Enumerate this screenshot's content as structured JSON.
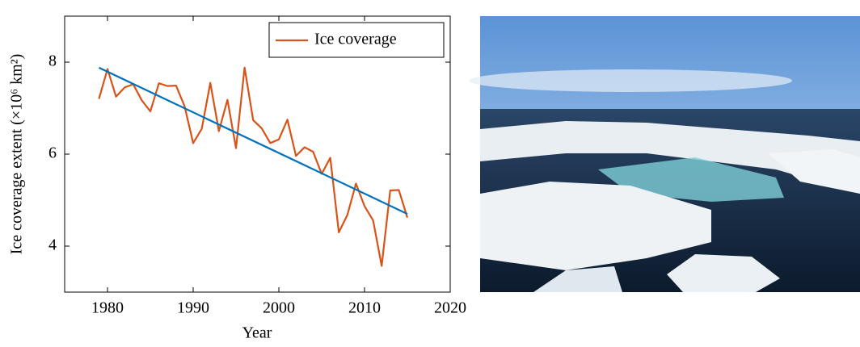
{
  "chart_data": {
    "type": "line",
    "xlabel": "Year",
    "ylabel": "Ice coverage extent (×10⁶ km²)",
    "x": [
      1979,
      1980,
      1981,
      1982,
      1983,
      1984,
      1985,
      1986,
      1987,
      1988,
      1989,
      1990,
      1991,
      1992,
      1993,
      1994,
      1995,
      1996,
      1997,
      1998,
      1999,
      2000,
      2001,
      2002,
      2003,
      2004,
      2005,
      2006,
      2007,
      2008,
      2009,
      2010,
      2011,
      2012,
      2013,
      2014,
      2015
    ],
    "series": [
      {
        "name": "Ice coverage",
        "color": "#d95319",
        "values": [
          7.2,
          7.85,
          7.25,
          7.45,
          7.52,
          7.17,
          6.93,
          7.54,
          7.48,
          7.49,
          7.04,
          6.24,
          6.55,
          7.55,
          6.5,
          7.18,
          6.13,
          7.88,
          6.74,
          6.56,
          6.24,
          6.32,
          6.75,
          5.96,
          6.15,
          6.05,
          5.57,
          5.92,
          4.3,
          4.68,
          5.36,
          4.87,
          4.56,
          3.57,
          5.21,
          5.22,
          4.62
        ]
      }
    ],
    "trend": {
      "x": [
        1979,
        2015
      ],
      "values": [
        7.88,
        4.7
      ],
      "color": "#0072bd"
    },
    "xlim": [
      1975,
      2020
    ],
    "xticks": [
      1980,
      1990,
      2000,
      2010,
      2020
    ],
    "ylim": [
      3,
      9
    ],
    "yticks": [
      4,
      6,
      8
    ],
    "legend": "upper right"
  }
}
